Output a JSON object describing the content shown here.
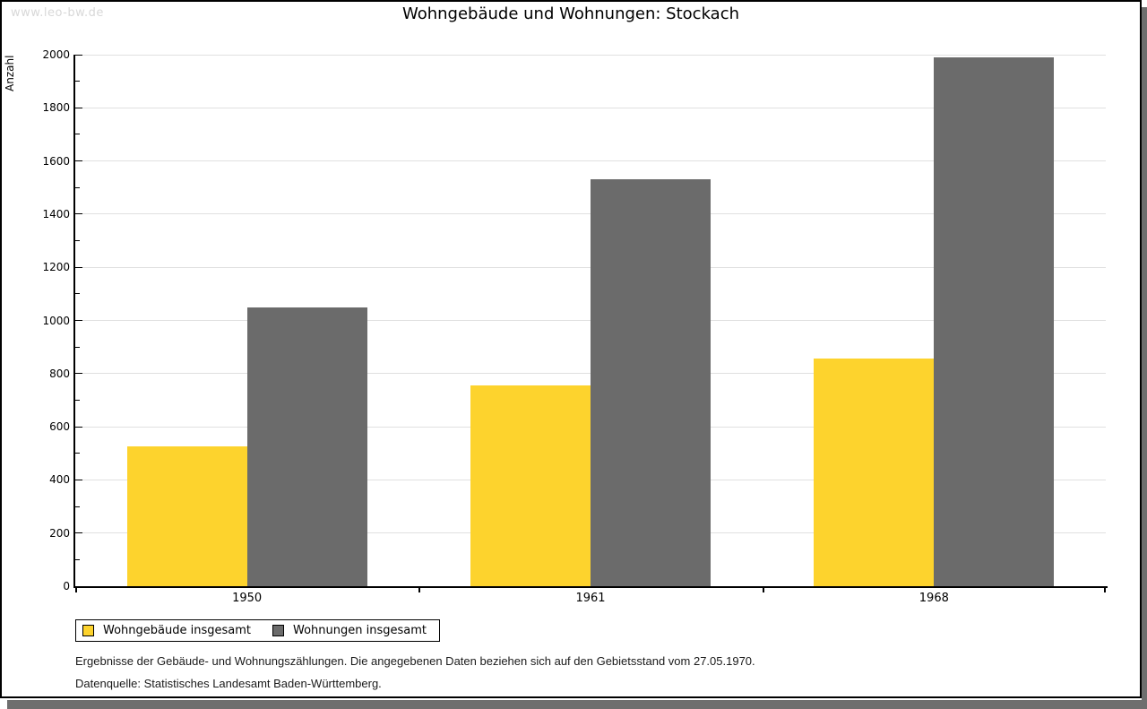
{
  "watermark": "www.leo-bw.de",
  "title": "Wohngebäude und Wohnungen: Stockach",
  "chart_data": {
    "type": "bar",
    "title": "Wohngebäude und Wohnungen: Stockach",
    "xlabel": "",
    "ylabel": "Anzahl",
    "categories": [
      "1950",
      "1961",
      "1968"
    ],
    "series": [
      {
        "name": "Wohngebäude insgesamt",
        "color": "#FDD32D",
        "values": [
          527,
          755,
          856
        ]
      },
      {
        "name": "Wohnungen insgesamt",
        "color": "#6B6B6B",
        "values": [
          1050,
          1530,
          1990
        ]
      }
    ],
    "ylim": [
      0,
      2000
    ],
    "ytick_step": 200,
    "minor_tick_step": 100,
    "grid": true,
    "legend_position": "bottom-left"
  },
  "footnotes": [
    "Ergebnisse der Gebäude- und Wohnungszählungen. Die angegebenen Daten beziehen sich auf den Gebietsstand vom 27.05.1970.",
    "Datenquelle: Statistisches Landesamt Baden-Württemberg."
  ],
  "colors": {
    "bar_yellow": "#FDD32D",
    "bar_gray": "#6B6B6B",
    "gridline": "#E0E0E0",
    "axis": "#000000",
    "watermark": "#D8D8D8",
    "frame_border": "#000000",
    "drop_shadow": "#6E6E6E",
    "background": "#FFFFFF"
  }
}
